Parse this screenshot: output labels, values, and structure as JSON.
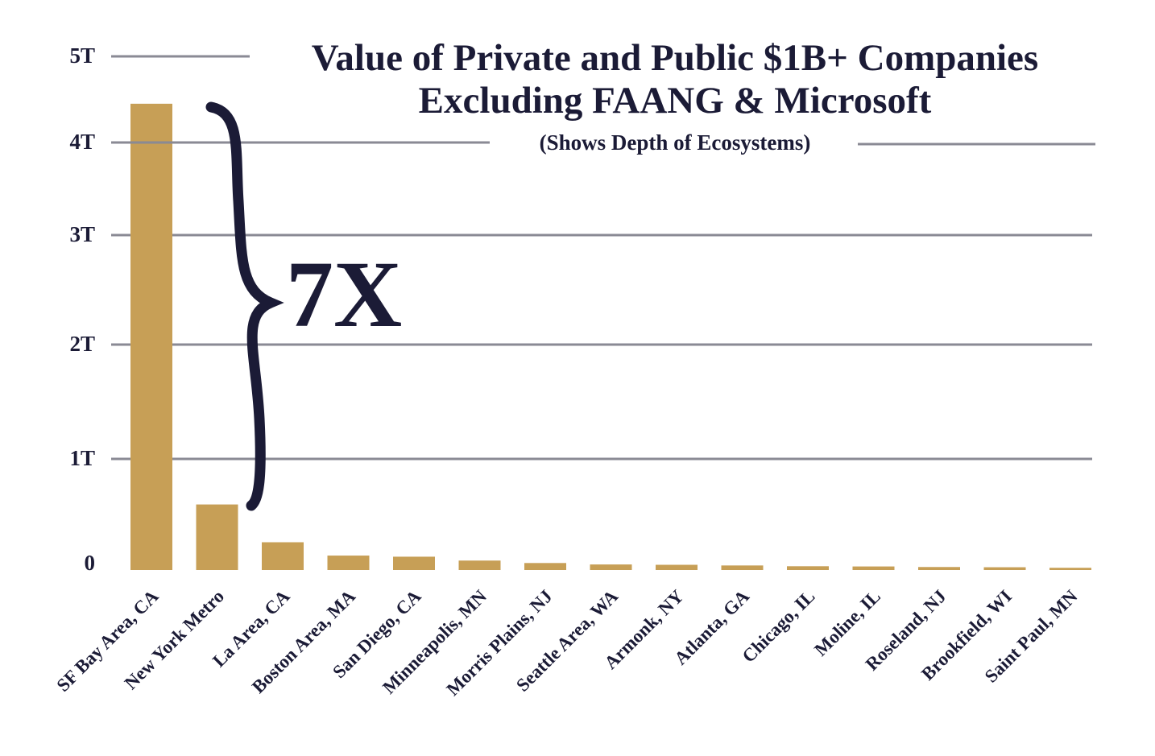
{
  "chart_data": {
    "type": "bar",
    "title": "Value of Private and Public $1B+ Companies",
    "title_line2": "Excluding FAANG & Microsoft",
    "subtitle": "(Shows Depth of Ecosystems)",
    "xlabel": "",
    "ylabel": "",
    "ylim": [
      0,
      5
    ],
    "y_ticks": [
      {
        "value": 0,
        "label": "0"
      },
      {
        "value": 1,
        "label": "1T"
      },
      {
        "value": 2,
        "label": "2T"
      },
      {
        "value": 3,
        "label": "3T"
      },
      {
        "value": 4,
        "label": "4T"
      },
      {
        "value": 5,
        "label": "5T"
      }
    ],
    "grid": true,
    "unit": "trillion USD",
    "categories": [
      "SF Bay Area, CA",
      "New York Metro",
      "La Area, CA",
      "Boston Area, MA",
      "San Diego, CA",
      "Minneapolis, MN",
      "Morris Plains, NJ",
      "Seattle Area, WA",
      "Armonk, NY",
      "Atlanta, GA",
      "Chicago, IL",
      "Moline, IL",
      "Roseland, NJ",
      "Brookfield, WI",
      "Saint Paul, MN"
    ],
    "values": [
      4.45,
      0.59,
      0.25,
      0.13,
      0.12,
      0.085,
      0.063,
      0.05,
      0.047,
      0.041,
      0.034,
      0.032,
      0.027,
      0.025,
      0.02
    ],
    "annotation": "7X",
    "colors": {
      "bar": "#c79f56",
      "text": "#1b1b36",
      "grid": "#8a8a94"
    }
  }
}
